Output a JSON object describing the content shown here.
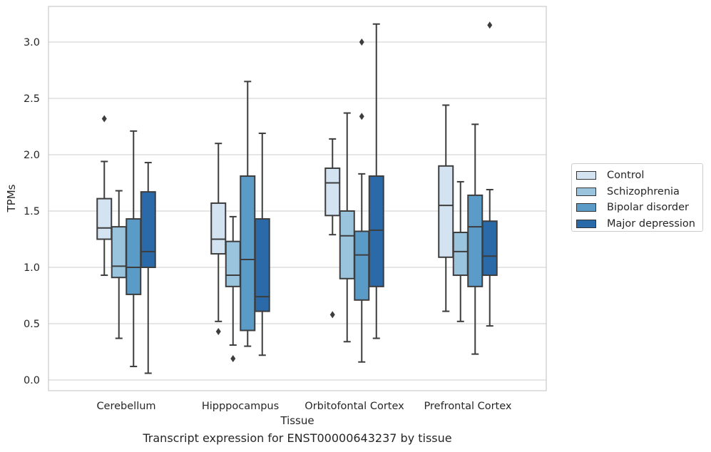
{
  "chart_data": {
    "type": "boxplot",
    "title": "",
    "xlabel": "Tissue",
    "ylabel": "TPMs",
    "caption": "Transcript expression for ENST00000643237 by tissue",
    "categories": [
      "Cerebellum",
      "Hipppocampus",
      "Orbitofontal Cortex",
      "Prefrontal Cortex"
    ],
    "yticks": [
      0.0,
      0.5,
      1.0,
      1.5,
      2.0,
      2.5,
      3.0
    ],
    "yticklabels": [
      "0.0",
      "0.5",
      "1.0",
      "1.5",
      "2.0",
      "2.5",
      "3.0"
    ],
    "ylim": [
      -0.09,
      3.32
    ],
    "grid": "horizontal",
    "legend_position": "center-right, outside plot",
    "series": [
      {
        "name": "Control",
        "color": "#d4e3f2",
        "boxes": [
          {
            "whisker_low": 0.93,
            "q1": 1.25,
            "median": 1.35,
            "q3": 1.61,
            "whisker_high": 1.94,
            "outliers": [
              2.32
            ]
          },
          {
            "whisker_low": 0.52,
            "q1": 1.12,
            "median": 1.25,
            "q3": 1.57,
            "whisker_high": 2.1,
            "outliers": [
              0.43
            ]
          },
          {
            "whisker_low": 1.29,
            "q1": 1.46,
            "median": 1.75,
            "q3": 1.88,
            "whisker_high": 2.14,
            "outliers": [
              0.58
            ]
          },
          {
            "whisker_low": 0.61,
            "q1": 1.09,
            "median": 1.55,
            "q3": 1.9,
            "whisker_high": 2.44,
            "outliers": []
          }
        ]
      },
      {
        "name": "Schizophrenia",
        "color": "#9ac3dd",
        "boxes": [
          {
            "whisker_low": 0.37,
            "q1": 0.91,
            "median": 1.01,
            "q3": 1.36,
            "whisker_high": 1.68,
            "outliers": []
          },
          {
            "whisker_low": 0.31,
            "q1": 0.83,
            "median": 0.93,
            "q3": 1.23,
            "whisker_high": 1.45,
            "outliers": [
              0.19
            ]
          },
          {
            "whisker_low": 0.34,
            "q1": 0.9,
            "median": 1.28,
            "q3": 1.5,
            "whisker_high": 2.37,
            "outliers": []
          },
          {
            "whisker_low": 0.52,
            "q1": 0.93,
            "median": 1.14,
            "q3": 1.31,
            "whisker_high": 1.76,
            "outliers": []
          }
        ]
      },
      {
        "name": "Bipolar disorder",
        "color": "#5b9bc8",
        "boxes": [
          {
            "whisker_low": 0.12,
            "q1": 0.76,
            "median": 1.0,
            "q3": 1.43,
            "whisker_high": 2.21,
            "outliers": []
          },
          {
            "whisker_low": 0.3,
            "q1": 0.44,
            "median": 1.07,
            "q3": 1.81,
            "whisker_high": 2.65,
            "outliers": []
          },
          {
            "whisker_low": 0.16,
            "q1": 0.71,
            "median": 1.11,
            "q3": 1.32,
            "whisker_high": 1.83,
            "outliers": [
              2.34,
              3.0
            ]
          },
          {
            "whisker_low": 0.23,
            "q1": 0.83,
            "median": 1.36,
            "q3": 1.64,
            "whisker_high": 2.27,
            "outliers": []
          }
        ]
      },
      {
        "name": "Major depression",
        "color": "#2b6aa8",
        "boxes": [
          {
            "whisker_low": 0.06,
            "q1": 1.0,
            "median": 1.14,
            "q3": 1.67,
            "whisker_high": 1.93,
            "outliers": []
          },
          {
            "whisker_low": 0.22,
            "q1": 0.61,
            "median": 0.74,
            "q3": 1.43,
            "whisker_high": 2.19,
            "outliers": []
          },
          {
            "whisker_low": 0.37,
            "q1": 0.83,
            "median": 1.33,
            "q3": 1.81,
            "whisker_high": 3.16,
            "outliers": []
          },
          {
            "whisker_low": 0.48,
            "q1": 0.93,
            "median": 1.1,
            "q3": 1.41,
            "whisker_high": 1.69,
            "outliers": [
              3.15
            ]
          }
        ]
      }
    ]
  }
}
